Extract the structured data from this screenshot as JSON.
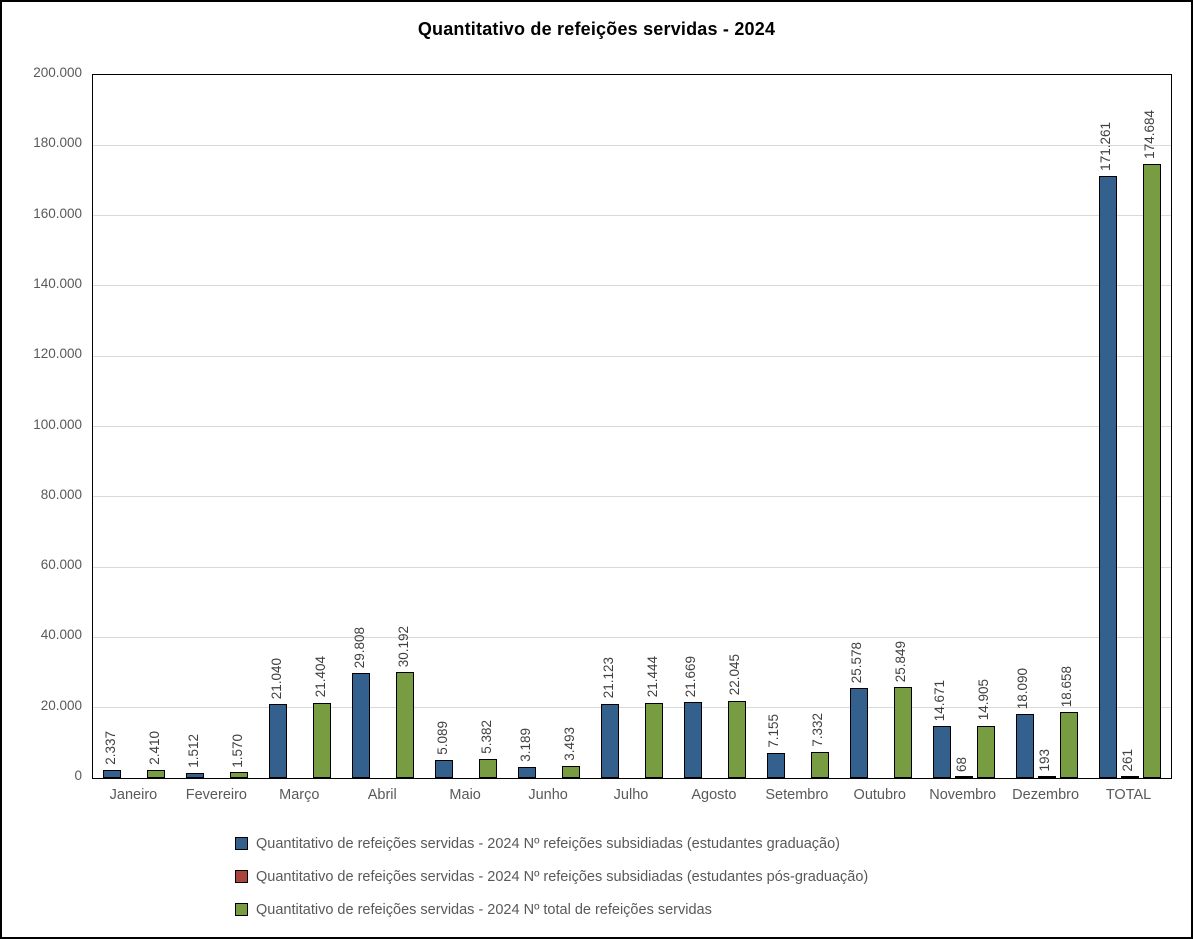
{
  "title": "Quantitativo de refeições servidas - 2024",
  "y_axis": {
    "ticks": [
      "200.000",
      "180.000",
      "160.000",
      "140.000",
      "120.000",
      "100.000",
      "80.000",
      "60.000",
      "40.000",
      "20.000",
      "0"
    ],
    "max": 200000
  },
  "chart_data": {
    "type": "bar",
    "title": "Quantitativo de refeições servidas - 2024",
    "categories": [
      "Janeiro",
      "Fevereiro",
      "Março",
      "Abril",
      "Maio",
      "Junho",
      "Julho",
      "Agosto",
      "Setembro",
      "Outubro",
      "Novembro",
      "Dezembro",
      "TOTAL"
    ],
    "ylim": [
      0,
      200000
    ],
    "grid": true,
    "legend_position": "bottom-left",
    "series": [
      {
        "key": "graduacao",
        "name": "Quantitativo de refeições servidas - 2024 Nº refeições subsidiadas (estudantes graduação)",
        "color": "#33608C",
        "values": [
          2337,
          1512,
          21040,
          29808,
          5089,
          3189,
          21123,
          21669,
          7155,
          25578,
          14671,
          18090,
          171261
        ],
        "labels": [
          "2.337",
          "1.512",
          "21.040",
          "29.808",
          "5.089",
          "3.189",
          "21.123",
          "21.669",
          "7.155",
          "25.578",
          "14.671",
          "18.090",
          "171.261"
        ]
      },
      {
        "key": "pos-graduacao",
        "name": "Quantitativo de refeições servidas - 2024 Nº refeições subsidiadas (estudantes pós-graduação)",
        "color": "#A9443F",
        "values": [
          0,
          0,
          0,
          0,
          0,
          0,
          0,
          0,
          0,
          0,
          68,
          193,
          261
        ],
        "labels": [
          "",
          "",
          "",
          "",
          "",
          "",
          "",
          "",
          "",
          "",
          "68",
          "193",
          "261"
        ]
      },
      {
        "key": "total",
        "name": "Quantitativo de refeições servidas - 2024 Nº total de refeições servidas",
        "color": "#779C41",
        "values": [
          2410,
          1570,
          21404,
          30192,
          5382,
          3493,
          21444,
          22045,
          7332,
          25849,
          14905,
          18658,
          174684
        ],
        "labels": [
          "2.410",
          "1.570",
          "21.404",
          "30.192",
          "5.382",
          "3.493",
          "21.444",
          "22.045",
          "7.332",
          "25.849",
          "14.905",
          "18.658",
          "174.684"
        ]
      }
    ]
  },
  "colors": {
    "grid": "#D9D9D9",
    "axis_text": "#595959",
    "data_label": "#404040",
    "plot_border": "#000000"
  }
}
